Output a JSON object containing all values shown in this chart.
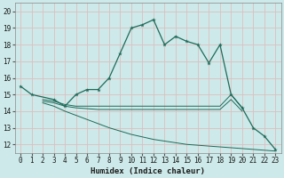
{
  "xlabel": "Humidex (Indice chaleur)",
  "bg_color": "#cde9e9",
  "grid_color": "#ddbfbf",
  "line_color": "#1e6b5a",
  "x_ticks": [
    0,
    1,
    2,
    3,
    4,
    5,
    6,
    7,
    8,
    9,
    10,
    11,
    12,
    13,
    14,
    15,
    16,
    17,
    18,
    19,
    20,
    21,
    22,
    23
  ],
  "y_ticks": [
    12,
    13,
    14,
    15,
    16,
    17,
    18,
    19,
    20
  ],
  "ylim": [
    11.5,
    20.5
  ],
  "xlim": [
    -0.5,
    23.5
  ],
  "main_line": {
    "x": [
      0,
      1,
      3,
      4,
      5,
      6,
      7,
      8,
      9,
      10,
      11,
      12,
      13,
      14,
      15,
      16,
      17,
      18,
      19,
      20,
      21,
      22,
      23
    ],
    "y": [
      15.5,
      15.0,
      14.7,
      14.3,
      15.0,
      15.3,
      15.3,
      16.0,
      17.5,
      19.0,
      19.2,
      19.5,
      18.0,
      18.5,
      18.2,
      18.0,
      16.9,
      18.0,
      15.0,
      14.2,
      13.0,
      12.5,
      11.7
    ]
  },
  "flat_line1": {
    "x": [
      2,
      3,
      4,
      5,
      6,
      7,
      8,
      9,
      10,
      11,
      12,
      13,
      14,
      15,
      16,
      17,
      18,
      19,
      20
    ],
    "y": [
      14.7,
      14.6,
      14.4,
      14.3,
      14.3,
      14.3,
      14.3,
      14.3,
      14.3,
      14.3,
      14.3,
      14.3,
      14.3,
      14.3,
      14.3,
      14.3,
      14.3,
      15.0,
      14.2
    ]
  },
  "flat_line2": {
    "x": [
      2,
      3,
      4,
      5,
      6,
      7,
      8,
      9,
      10,
      11,
      12,
      13,
      14,
      15,
      16,
      17,
      18,
      19,
      20
    ],
    "y": [
      14.6,
      14.5,
      14.3,
      14.2,
      14.15,
      14.1,
      14.1,
      14.1,
      14.1,
      14.1,
      14.1,
      14.1,
      14.1,
      14.1,
      14.1,
      14.1,
      14.1,
      14.7,
      14.0
    ]
  },
  "decline_line": {
    "x": [
      2,
      3,
      4,
      5,
      6,
      7,
      8,
      9,
      10,
      11,
      12,
      13,
      14,
      15,
      16,
      17,
      18,
      19,
      20,
      21,
      22,
      23
    ],
    "y": [
      14.5,
      14.3,
      14.0,
      13.75,
      13.5,
      13.25,
      13.0,
      12.8,
      12.6,
      12.45,
      12.3,
      12.2,
      12.1,
      12.0,
      11.95,
      11.9,
      11.85,
      11.8,
      11.75,
      11.7,
      11.65,
      11.6
    ]
  }
}
